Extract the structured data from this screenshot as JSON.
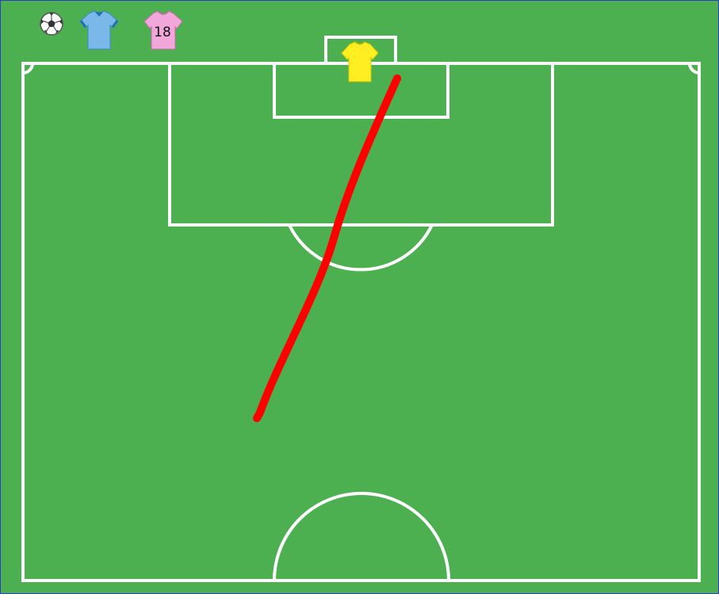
{
  "colors": {
    "pitch": "#4caf50",
    "lines": "#ffffff",
    "pass_line": "#ff0000",
    "frame_border": "#2a3fbf",
    "team_a_shirt": "#7ab8ea",
    "team_a_collar": "#1f6fb2",
    "team_b_shirt": "#f1a7d9",
    "goalkeeper_shirt": "#ffee22"
  },
  "toolbar": {
    "ball_icon": "soccer-ball-icon",
    "team_a_icon": "blue-jersey-icon",
    "team_b_icon": "pink-jersey-icon",
    "team_b_number": "18"
  },
  "pitch": {
    "goalkeeper_icon": "yellow-jersey-icon",
    "drawn_line": "red-pass-line"
  }
}
